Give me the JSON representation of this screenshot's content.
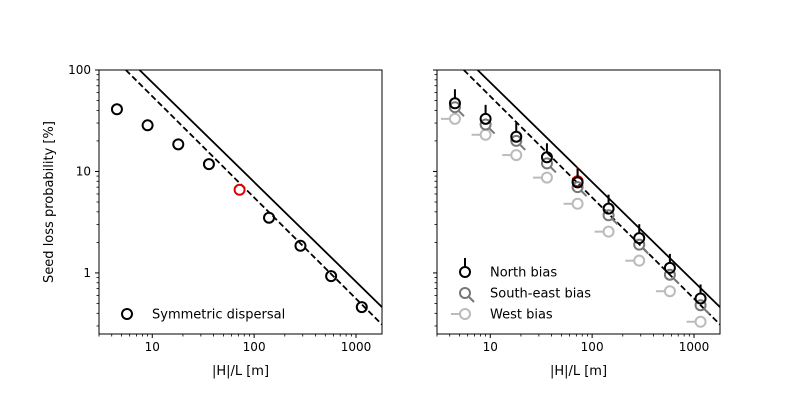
{
  "chart_data": [
    {
      "type": "scatter",
      "xlabel": "|H|/L [m]",
      "ylabel": "Seed loss probability [%]",
      "xscale": "log",
      "yscale": "log",
      "xlim": [
        3,
        1800
      ],
      "ylim": [
        0.25,
        100
      ],
      "xticks": [
        {
          "value": 10,
          "label": "10"
        },
        {
          "value": 100,
          "label": "100"
        },
        {
          "value": 1000,
          "label": "1000"
        }
      ],
      "yticks": [
        {
          "value": 1,
          "label": "1"
        },
        {
          "value": 10,
          "label": "10"
        },
        {
          "value": 100,
          "label": "100"
        }
      ],
      "legend_position": "bottom-left",
      "lines": [
        {
          "style": "solid",
          "x": [
            7.5,
            1800
          ],
          "y": [
            100,
            0.46
          ]
        },
        {
          "style": "dashed",
          "x": [
            5.5,
            1800
          ],
          "y": [
            100,
            0.31
          ]
        }
      ],
      "series": [
        {
          "name": "Symmetric dispersal",
          "color": "#000000",
          "marker": "circle",
          "x": [
            4.5,
            9,
            18,
            36,
            140,
            285,
            570,
            1140
          ],
          "y": [
            41,
            28.5,
            18.5,
            11.8,
            3.5,
            1.85,
            0.93,
            0.46
          ]
        },
        {
          "color": "#dd0000",
          "marker": "circle",
          "x": [
            72
          ],
          "y": [
            6.6
          ]
        }
      ]
    },
    {
      "type": "scatter",
      "xlabel": "|H|/L [m]",
      "ylabel": "",
      "xscale": "log",
      "yscale": "log",
      "xlim": [
        3,
        1800
      ],
      "ylim": [
        0.25,
        100
      ],
      "xticks": [
        {
          "value": 10,
          "label": "10"
        },
        {
          "value": 100,
          "label": "100"
        },
        {
          "value": 1000,
          "label": "1000"
        }
      ],
      "yticks": [],
      "legend_position": "bottom-left",
      "lines": [
        {
          "style": "solid",
          "x": [
            7.5,
            1800
          ],
          "y": [
            100,
            0.46
          ]
        },
        {
          "style": "dashed",
          "x": [
            5.5,
            1800
          ],
          "y": [
            100,
            0.31
          ]
        }
      ],
      "series": [
        {
          "name": "North bias",
          "color": "#000000",
          "marker": "circle-tick-up",
          "x": [
            4.5,
            9,
            18,
            36,
            72,
            145,
            290,
            580,
            1160
          ],
          "y": [
            47,
            33,
            22,
            13.8,
            7.8,
            4.3,
            2.2,
            1.12,
            0.56
          ]
        },
        {
          "name": "South-east bias",
          "color": "#777777",
          "marker": "circle-tick-down-right",
          "x": [
            4.5,
            9,
            18,
            36,
            72,
            145,
            290,
            580,
            1160
          ],
          "y": [
            43,
            29,
            20,
            12,
            7.0,
            3.7,
            1.9,
            0.96,
            0.48
          ]
        },
        {
          "name": "West bias",
          "color": "#bbbbbb",
          "marker": "circle-tick-left",
          "x": [
            4.5,
            9,
            18,
            36,
            72,
            145,
            290,
            580,
            1160
          ],
          "y": [
            33,
            23,
            14.5,
            8.7,
            4.8,
            2.55,
            1.32,
            0.66,
            0.33
          ]
        },
        {
          "color": "#dd0000",
          "marker": "circle-tick-up",
          "x": [
            72
          ],
          "y": [
            8.0
          ]
        }
      ]
    }
  ]
}
